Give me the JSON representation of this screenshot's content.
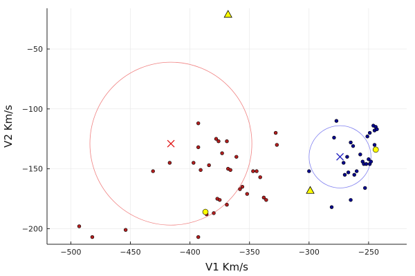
{
  "chart_data": {
    "type": "scatter",
    "xlabel": "V1 Km/s",
    "ylabel": "V2 Km/s",
    "xlim": [
      -520,
      -218
    ],
    "ylim": [
      -213,
      -16
    ],
    "grid": true,
    "legend": "none",
    "x_ticks": [
      -500,
      -450,
      -400,
      -350,
      -300,
      -250
    ],
    "y_ticks": [
      -200,
      -150,
      -100,
      -50
    ],
    "x_tick_labels": [
      "−500",
      "−450",
      "−400",
      "−350",
      "−300",
      "−250"
    ],
    "y_tick_labels": [
      "−200",
      "−150",
      "−100",
      "−50"
    ],
    "colors": {
      "red_group": "#b31f1f",
      "blue_group": "#08088f",
      "highlight": "#ffff00",
      "red_circle": "#f08080",
      "blue_circle": "#8080f0",
      "red_center": "#e01010",
      "blue_center": "#2020c0"
    },
    "circles": [
      {
        "group": "red",
        "cx": -416,
        "cy": -129,
        "r": 68,
        "center_marker": "x"
      },
      {
        "group": "blue",
        "cx": -274,
        "cy": -140,
        "r": 26,
        "center_marker": "x"
      }
    ],
    "series": [
      {
        "group": "red",
        "marker": "circle",
        "points": [
          [
            -493,
            -198
          ],
          [
            -482,
            -207
          ],
          [
            -454,
            -201
          ],
          [
            -431,
            -152
          ],
          [
            -417,
            -145
          ],
          [
            -397,
            -145
          ],
          [
            -393,
            -112
          ],
          [
            -393,
            -132
          ],
          [
            -391,
            -151
          ],
          [
            -393,
            -207
          ],
          [
            -387,
            -185
          ],
          [
            -386,
            -188
          ],
          [
            -384,
            -147
          ],
          [
            -380,
            -187
          ],
          [
            -378,
            -125
          ],
          [
            -377,
            -175
          ],
          [
            -376,
            -127
          ],
          [
            -375,
            -176
          ],
          [
            -373,
            -137
          ],
          [
            -369,
            -127
          ],
          [
            -369,
            -180
          ],
          [
            -368,
            -150
          ],
          [
            -366,
            -151
          ],
          [
            -361,
            -140
          ],
          [
            -358,
            -167
          ],
          [
            -356,
            -165
          ],
          [
            -352,
            -171
          ],
          [
            -347,
            -152
          ],
          [
            -344,
            -152
          ],
          [
            -341,
            -157
          ],
          [
            -338,
            -174
          ],
          [
            -336,
            -176
          ],
          [
            -328,
            -120
          ],
          [
            -327,
            -130
          ]
        ]
      },
      {
        "group": "blue",
        "marker": "circle",
        "points": [
          [
            -300,
            -152
          ],
          [
            -281,
            -182
          ],
          [
            -279,
            -124
          ],
          [
            -277,
            -110
          ],
          [
            -271,
            -145
          ],
          [
            -270,
            -155
          ],
          [
            -268,
            -140
          ],
          [
            -267,
            -153
          ],
          [
            -265,
            -128
          ],
          [
            -265,
            -176
          ],
          [
            -263,
            -131
          ],
          [
            -262,
            -155
          ],
          [
            -260,
            -152
          ],
          [
            -257,
            -138
          ],
          [
            -255,
            -144
          ],
          [
            -254,
            -146
          ],
          [
            -253,
            -166
          ],
          [
            -252,
            -146
          ],
          [
            -251,
            -123
          ],
          [
            -250,
            -142
          ],
          [
            -249,
            -120
          ],
          [
            -249,
            -146
          ],
          [
            -248,
            -144
          ],
          [
            -246,
            -114
          ],
          [
            -245,
            -130
          ],
          [
            -245,
            -118
          ],
          [
            -244,
            -115
          ],
          [
            -243,
            -117
          ]
        ]
      },
      {
        "group": "highlight",
        "marker": "circle",
        "points": [
          [
            -387,
            -186
          ],
          [
            -244,
            -134
          ]
        ]
      },
      {
        "group": "highlight",
        "marker": "triangle",
        "points": [
          [
            -368,
            -21
          ],
          [
            -299,
            -168
          ]
        ]
      }
    ]
  }
}
